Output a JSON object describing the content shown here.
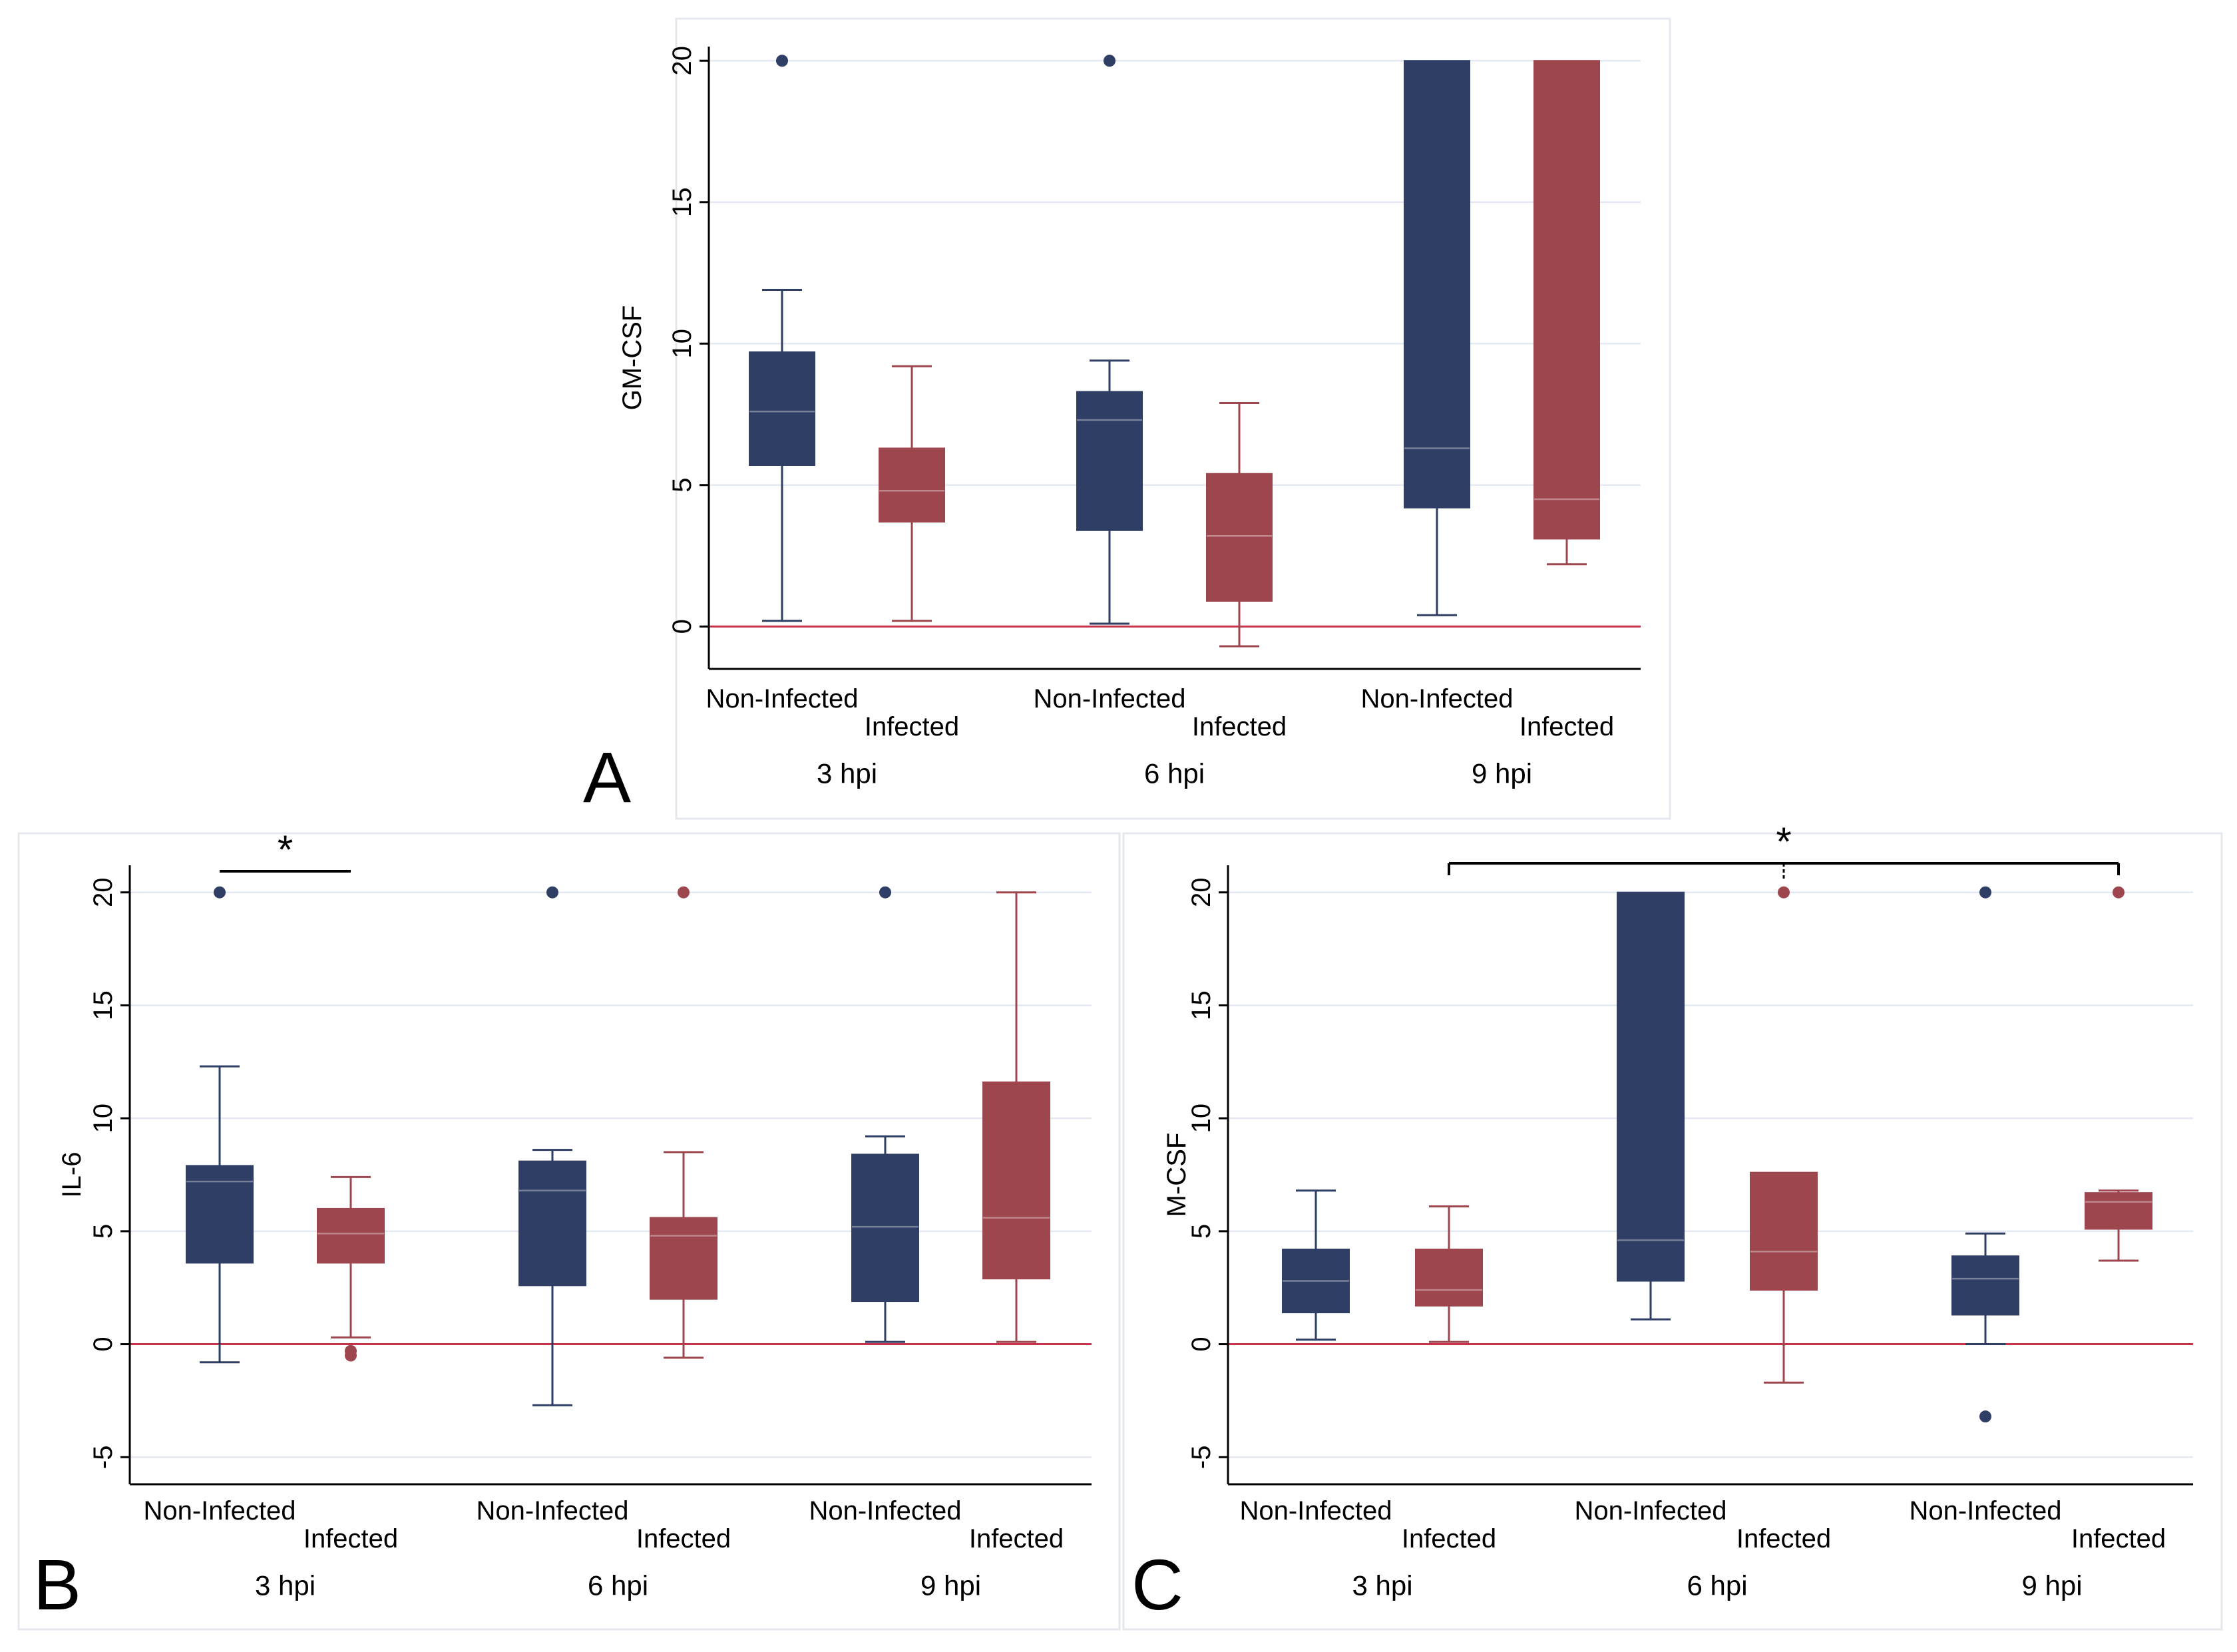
{
  "colors": {
    "non_infected": "#2e3e64",
    "infected": "#9d464e",
    "zero_line": "#c8324a",
    "grid": "#e3e8f2"
  },
  "chart_data": [
    {
      "panel": "A",
      "type": "box",
      "ylabel": "GM-CSF",
      "ylim": [
        -1.5,
        20.5
      ],
      "yticks": [
        0,
        5,
        10,
        15,
        20
      ],
      "hline": 0,
      "grid": true,
      "groups": [
        "3 hpi",
        "6 hpi",
        "9 hpi"
      ],
      "categories": [
        "Non-Infected",
        "Infected"
      ],
      "boxes": [
        {
          "group": "3 hpi",
          "category": "Non-Infected",
          "whisker_low": 0.2,
          "q1": 5.7,
          "median": 7.6,
          "q3": 9.7,
          "whisker_high": 11.9,
          "outliers": [
            20
          ]
        },
        {
          "group": "3 hpi",
          "category": "Infected",
          "whisker_low": 0.2,
          "q1": 3.7,
          "median": 4.8,
          "q3": 6.3,
          "whisker_high": 9.2,
          "outliers": []
        },
        {
          "group": "6 hpi",
          "category": "Non-Infected",
          "whisker_low": 0.1,
          "q1": 3.4,
          "median": 7.3,
          "q3": 8.3,
          "whisker_high": 9.4,
          "outliers": [
            20
          ]
        },
        {
          "group": "6 hpi",
          "category": "Infected",
          "whisker_low": -0.7,
          "q1": 0.9,
          "median": 3.2,
          "q3": 5.4,
          "whisker_high": 7.9,
          "outliers": []
        },
        {
          "group": "9 hpi",
          "category": "Non-Infected",
          "whisker_low": 0.4,
          "q1": 4.2,
          "median": 6.3,
          "q3": 20,
          "whisker_high": 20,
          "outliers": []
        },
        {
          "group": "9 hpi",
          "category": "Infected",
          "whisker_low": 2.2,
          "q1": 3.1,
          "median": 4.5,
          "q3": 20,
          "whisker_high": 20,
          "outliers": []
        }
      ],
      "significance": []
    },
    {
      "panel": "B",
      "type": "box",
      "ylabel": "IL-6",
      "ylim": [
        -6.2,
        21.2
      ],
      "yticks": [
        -5,
        0,
        5,
        10,
        15,
        20
      ],
      "hline": 0,
      "grid": true,
      "groups": [
        "3 hpi",
        "6 hpi",
        "9 hpi"
      ],
      "categories": [
        "Non-Infected",
        "Infected"
      ],
      "boxes": [
        {
          "group": "3 hpi",
          "category": "Non-Infected",
          "whisker_low": -0.8,
          "q1": 3.6,
          "median": 7.2,
          "q3": 7.9,
          "whisker_high": 12.3,
          "outliers": [
            20
          ]
        },
        {
          "group": "3 hpi",
          "category": "Infected",
          "whisker_low": 0.3,
          "q1": 3.6,
          "median": 4.9,
          "q3": 6.0,
          "whisker_high": 7.4,
          "outliers": [
            -0.3,
            -0.5
          ]
        },
        {
          "group": "6 hpi",
          "category": "Non-Infected",
          "whisker_low": -2.7,
          "q1": 2.6,
          "median": 6.8,
          "q3": 8.1,
          "whisker_high": 8.6,
          "outliers": [
            20
          ]
        },
        {
          "group": "6 hpi",
          "category": "Infected",
          "whisker_low": -0.6,
          "q1": 2.0,
          "median": 4.8,
          "q3": 5.6,
          "whisker_high": 8.5,
          "outliers": [
            20
          ]
        },
        {
          "group": "9 hpi",
          "category": "Non-Infected",
          "whisker_low": 0.1,
          "q1": 1.9,
          "median": 5.2,
          "q3": 8.4,
          "whisker_high": 9.2,
          "outliers": [
            20
          ]
        },
        {
          "group": "9 hpi",
          "category": "Infected",
          "whisker_low": 0.1,
          "q1": 2.9,
          "median": 5.6,
          "q3": 11.6,
          "whisker_high": 20,
          "outliers": []
        }
      ],
      "significance": [
        {
          "label": "*",
          "from": 0,
          "to": 1
        }
      ]
    },
    {
      "panel": "C",
      "type": "box",
      "ylabel": "M-CSF",
      "ylim": [
        -6.2,
        21.2
      ],
      "yticks": [
        -5,
        0,
        5,
        10,
        15,
        20
      ],
      "hline": 0,
      "grid": true,
      "groups": [
        "3 hpi",
        "6 hpi",
        "9 hpi"
      ],
      "categories": [
        "Non-Infected",
        "Infected"
      ],
      "boxes": [
        {
          "group": "3 hpi",
          "category": "Non-Infected",
          "whisker_low": 0.2,
          "q1": 1.4,
          "median": 2.8,
          "q3": 4.2,
          "whisker_high": 6.8,
          "outliers": []
        },
        {
          "group": "3 hpi",
          "category": "Infected",
          "whisker_low": 0.1,
          "q1": 1.7,
          "median": 2.4,
          "q3": 4.2,
          "whisker_high": 6.1,
          "outliers": []
        },
        {
          "group": "6 hpi",
          "category": "Non-Infected",
          "whisker_low": 1.1,
          "q1": 2.8,
          "median": 4.6,
          "q3": 20,
          "whisker_high": 20,
          "outliers": []
        },
        {
          "group": "6 hpi",
          "category": "Infected",
          "whisker_low": -1.7,
          "q1": 2.4,
          "median": 4.1,
          "q3": 7.6,
          "whisker_high": 7.6,
          "outliers": [
            20
          ]
        },
        {
          "group": "9 hpi",
          "category": "Non-Infected",
          "whisker_low": 0.0,
          "q1": 1.3,
          "median": 2.9,
          "q3": 3.9,
          "whisker_high": 4.9,
          "outliers": [
            20,
            -3.2
          ]
        },
        {
          "group": "9 hpi",
          "category": "Infected",
          "whisker_low": 3.7,
          "q1": 5.1,
          "median": 6.3,
          "q3": 6.7,
          "whisker_high": 6.8,
          "outliers": [
            20
          ]
        }
      ],
      "significance": [
        {
          "label": "*",
          "from": 1,
          "to": 5,
          "tick_at": 3
        }
      ]
    }
  ]
}
